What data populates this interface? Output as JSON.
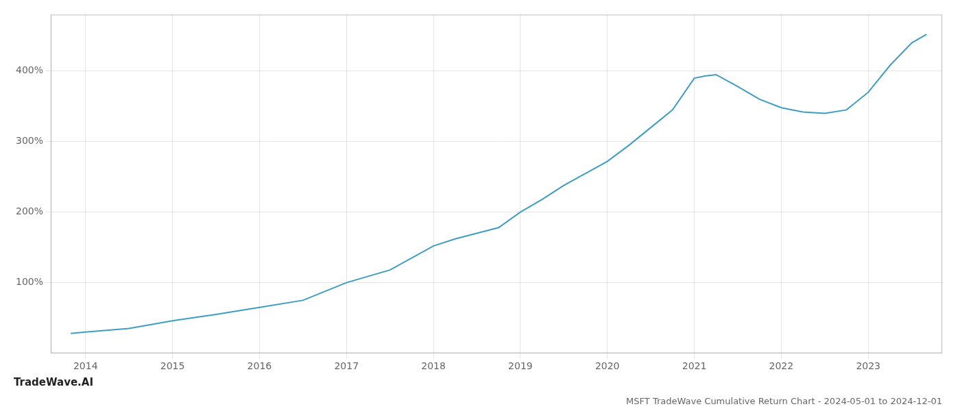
{
  "chart_data": {
    "type": "line",
    "title": "MSFT TradeWave Cumulative Return Chart - 2024-05-01 to 2024-12-01",
    "annotations": [
      "TradeWave.AI"
    ],
    "x": [
      2013.83,
      2014.0,
      2014.5,
      2015.0,
      2015.5,
      2016.0,
      2016.5,
      2017.0,
      2017.5,
      2018.0,
      2018.25,
      2018.5,
      2018.75,
      2019.0,
      2019.25,
      2019.5,
      2019.75,
      2020.0,
      2020.25,
      2020.5,
      2020.75,
      2021.0,
      2021.12,
      2021.25,
      2021.5,
      2021.75,
      2022.0,
      2022.25,
      2022.5,
      2022.75,
      2023.0,
      2023.25,
      2023.5,
      2023.67
    ],
    "values": [
      28,
      30,
      35,
      46,
      55,
      65,
      75,
      100,
      118,
      152,
      162,
      170,
      178,
      200,
      218,
      238,
      255,
      272,
      295,
      320,
      345,
      390,
      393,
      395,
      378,
      360,
      348,
      342,
      340,
      345,
      370,
      408,
      440,
      452
    ],
    "color": "#3d9dc3",
    "xlim": [
      2013.6,
      2023.85
    ],
    "xticks": [
      2014,
      2015,
      2016,
      2017,
      2018,
      2019,
      2020,
      2021,
      2022,
      2023
    ],
    "ylim": [
      0,
      480
    ],
    "yticks": [
      {
        "value": 100,
        "label": "100%"
      },
      {
        "value": 200,
        "label": "200%"
      },
      {
        "value": 300,
        "label": "300%"
      },
      {
        "value": 400,
        "label": "400%"
      }
    ],
    "grid": true
  }
}
